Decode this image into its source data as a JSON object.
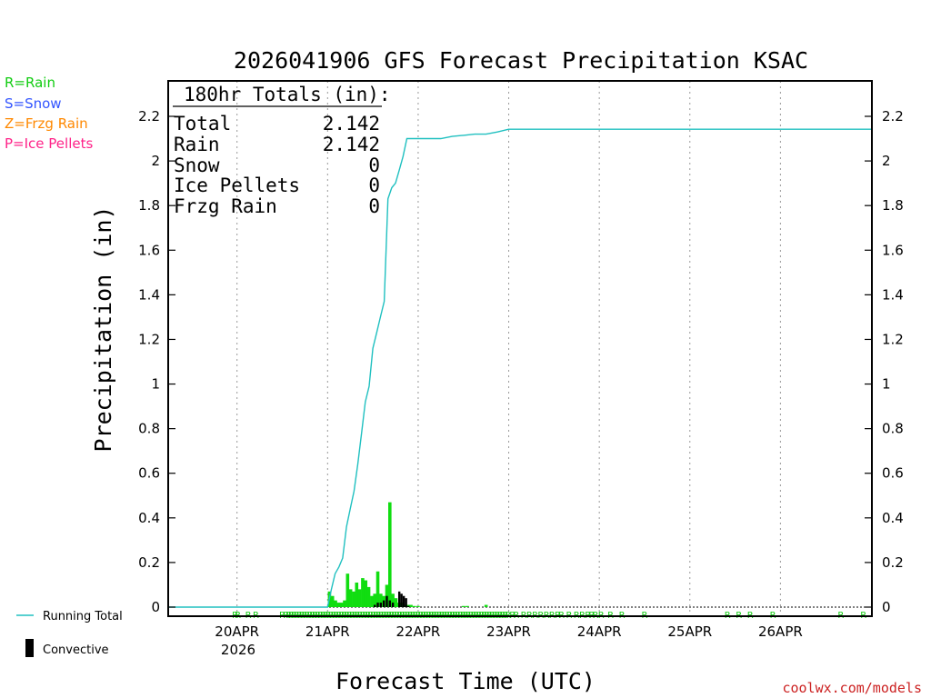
{
  "chart_data": {
    "type": "line+bar",
    "title": "2026041906 GFS Forecast Precipitation KSAC",
    "xlabel": "Forecast Time (UTC)",
    "ylabel": "Precipitation (in)",
    "ylim": [
      0,
      2.35
    ],
    "yticks": [
      "0",
      "0.2",
      "0.4",
      "0.6",
      "0.8",
      "1",
      "1.2",
      "1.4",
      "1.6",
      "1.8",
      "2",
      "2.2"
    ],
    "yticks_values": [
      0,
      0.2,
      0.4,
      0.6,
      0.8,
      1,
      1.2,
      1.4,
      1.6,
      1.8,
      2,
      2.2
    ],
    "xlim_hours": [
      0,
      186
    ],
    "xticks_hours": [
      18,
      42,
      66,
      90,
      114,
      138,
      162
    ],
    "xticks": [
      "20APR",
      "21APR",
      "22APR",
      "23APR",
      "24APR",
      "25APR",
      "26APR"
    ],
    "xtick_year": "2026",
    "totals": {
      "header": "180hr Totals (in):",
      "rows": [
        {
          "label": "Total",
          "value": "2.142"
        },
        {
          "label": "Rain",
          "value": "2.142"
        },
        {
          "label": "Snow",
          "value": "0"
        },
        {
          "label": "Ice Pellets",
          "value": "0"
        },
        {
          "label": "Frzg Rain",
          "value": "0"
        }
      ]
    },
    "ptype_legend": [
      {
        "label": "R=Rain",
        "color": "#11cc11"
      },
      {
        "label": "S=Snow",
        "color": "#3355ff"
      },
      {
        "label": "Z=Frzg Rain",
        "color": "#ff8800"
      },
      {
        "label": "P=Ice Pellets",
        "color": "#ff2288"
      }
    ],
    "series_legend": {
      "running_total": "Running Total",
      "convective": "Convective"
    },
    "running_total": {
      "color": "#20c0c0",
      "hours": [
        0,
        42,
        42.5,
        43,
        44,
        45,
        46,
        47,
        48,
        49,
        50,
        51,
        52,
        53,
        54,
        55,
        56,
        57,
        58,
        59,
        60,
        61,
        62,
        63,
        64,
        65,
        66,
        69,
        72,
        75,
        78,
        81,
        84,
        87,
        90,
        100,
        186
      ],
      "values": [
        0,
        0,
        0.04,
        0.08,
        0.15,
        0.18,
        0.22,
        0.36,
        0.44,
        0.52,
        0.64,
        0.78,
        0.92,
        0.99,
        1.16,
        1.23,
        1.3,
        1.37,
        1.83,
        1.88,
        1.9,
        1.96,
        2.02,
        2.1,
        2.1,
        2.1,
        2.1,
        2.1,
        2.1,
        2.11,
        2.115,
        2.12,
        2.12,
        2.13,
        2.142,
        2.142,
        2.142
      ]
    },
    "rain_bars": {
      "color": "#11dd11",
      "hours": [
        42.5,
        43.3,
        44.1,
        44.9,
        45.7,
        46.5,
        47.3,
        48.1,
        48.9,
        49.7,
        50.5,
        51.3,
        52.1,
        52.9,
        53.7,
        54.5,
        55.3,
        56.1,
        56.9,
        57.7,
        58.5,
        59.3,
        60.1,
        60.9,
        61.7,
        62.5,
        63.3,
        64.1,
        65,
        66,
        78,
        79,
        84
      ],
      "values": [
        0.07,
        0.05,
        0.03,
        0.02,
        0.02,
        0.03,
        0.15,
        0.08,
        0.07,
        0.11,
        0.08,
        0.13,
        0.12,
        0.09,
        0.05,
        0.06,
        0.16,
        0.06,
        0.05,
        0.1,
        0.47,
        0.06,
        0.04,
        0.02,
        0.02,
        0.01,
        0.01,
        0.01,
        0.005,
        0.005,
        0.005,
        0.005,
        0.01
      ]
    },
    "convective_bars": {
      "color": "#000000",
      "hours": [
        54.5,
        55.3,
        56.1,
        56.9,
        57.7,
        58.5,
        59.3,
        61.0,
        61.6,
        62.2,
        62.8,
        63.4
      ],
      "values": [
        0.01,
        0.02,
        0.02,
        0.03,
        0.05,
        0.03,
        0.02,
        0.07,
        0.06,
        0.05,
        0.04,
        0.005
      ]
    },
    "ptype_marks": {
      "symbol": "R",
      "hours": [
        17.5,
        18.2,
        21,
        23,
        30,
        31,
        31.7,
        32.4,
        33.1,
        33.8,
        34.5,
        35.2,
        35.9,
        36.6,
        37.3,
        38,
        38.7,
        39.4,
        40.1,
        40.8,
        41.5,
        42.2,
        42.9,
        43.6,
        44.3,
        45,
        45.7,
        46.4,
        47.1,
        47.8,
        48.5,
        49.2,
        49.9,
        50.6,
        51.3,
        52,
        52.7,
        53.4,
        54.1,
        54.8,
        55.5,
        56.2,
        56.9,
        57.6,
        58.3,
        59,
        59.7,
        60.4,
        61.1,
        61.8,
        62.5,
        63.2,
        63.9,
        64.6,
        65.3,
        66,
        66.7,
        67.4,
        68.1,
        68.8,
        69.5,
        70.2,
        70.9,
        71.6,
        72.3,
        73,
        73.7,
        74.4,
        75.1,
        75.8,
        76.5,
        77.2,
        77.9,
        78.6,
        79.3,
        80,
        80.7,
        81.4,
        82.1,
        82.8,
        83.5,
        84.2,
        84.9,
        85.6,
        86.3,
        87,
        87.7,
        88.4,
        89.1,
        89.8,
        91,
        92,
        94,
        95.5,
        97,
        98.5,
        100,
        101.5,
        103,
        104,
        106,
        108,
        109.5,
        111,
        112,
        113,
        114.5,
        117,
        120,
        126,
        148,
        151,
        154,
        160,
        178,
        184
      ]
    },
    "credit": "coolwx.com/models"
  }
}
